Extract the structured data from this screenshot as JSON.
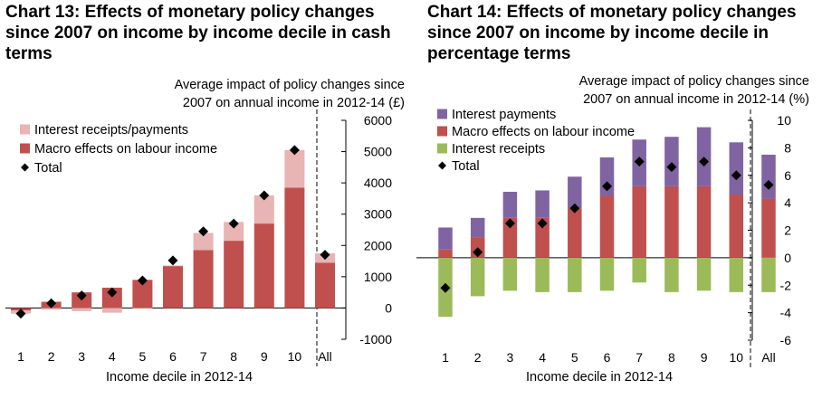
{
  "chart_data": [
    {
      "type": "bar",
      "stacked": true,
      "title": "Chart 13: Effects of monetary policy changes since 2007 on income by income decile in cash terms",
      "ylabel_line1": "Average impact of policy changes since",
      "ylabel_line2": "2007 on annual income in 2012-14 (£)",
      "xlabel": "Income decile in 2012-14",
      "categories": [
        "1",
        "2",
        "3",
        "4",
        "5",
        "6",
        "7",
        "8",
        "9",
        "10",
        "All"
      ],
      "ylim": [
        -1000,
        6000
      ],
      "yticks": [
        -1000,
        0,
        1000,
        2000,
        3000,
        4000,
        5000,
        6000
      ],
      "tick_labels": [
        "-1000",
        "0",
        "1000",
        "2000",
        "3000",
        "4000",
        "5000",
        "6000"
      ],
      "legend_position": "top-left",
      "series": [
        {
          "name": "Interest receipts/payments",
          "color": "#e8b4b4",
          "kind": "bar",
          "values": [
            -100,
            -50,
            -100,
            -150,
            -20,
            0,
            550,
            600,
            900,
            1200,
            300
          ]
        },
        {
          "name": "Macro effects on labour income",
          "color": "#c0504d",
          "kind": "bar",
          "values": [
            -80,
            200,
            500,
            650,
            900,
            1350,
            1850,
            2150,
            2700,
            3850,
            1450
          ]
        },
        {
          "name": "Total",
          "color": "#000000",
          "kind": "marker",
          "values": [
            -180,
            150,
            400,
            500,
            880,
            1520,
            2450,
            2700,
            3600,
            5050,
            1700
          ]
        }
      ]
    },
    {
      "type": "bar",
      "stacked": true,
      "title": "Chart 14: Effects of monetary policy changes since 2007 on income by income decile in percentage terms",
      "ylabel_line1": "Average impact of policy changes since",
      "ylabel_line2": "2007 on annual income in 2012-14 (%)",
      "xlabel": "Income decile in 2012-14",
      "categories": [
        "1",
        "2",
        "3",
        "4",
        "5",
        "6",
        "7",
        "8",
        "9",
        "10",
        "All"
      ],
      "ylim": [
        -6,
        10
      ],
      "yticks": [
        -6,
        -4,
        -2,
        0,
        2,
        4,
        6,
        8,
        10
      ],
      "tick_labels": [
        "-6",
        "-4",
        "-2",
        "0",
        "2",
        "4",
        "6",
        "8",
        "10"
      ],
      "legend_position": "top-left",
      "series": [
        {
          "name": "Interest payments",
          "color": "#8064a2",
          "kind": "bar",
          "values": [
            1.6,
            1.4,
            1.9,
            2.0,
            2.3,
            2.8,
            3.4,
            3.6,
            4.3,
            3.8,
            3.2
          ]
        },
        {
          "name": "Macro effects on labour income",
          "color": "#c0504d",
          "kind": "bar",
          "values": [
            0.6,
            1.5,
            2.9,
            2.9,
            3.6,
            4.5,
            5.2,
            5.2,
            5.2,
            4.6,
            4.3
          ]
        },
        {
          "name": "Interest receipts",
          "color": "#9bbb59",
          "kind": "bar",
          "values": [
            -4.3,
            -2.8,
            -2.4,
            -2.5,
            -2.5,
            -2.4,
            -1.8,
            -2.5,
            -2.4,
            -2.5,
            -2.5
          ]
        },
        {
          "name": "Total",
          "color": "#000000",
          "kind": "marker",
          "values": [
            -2.2,
            0.4,
            2.5,
            2.5,
            3.6,
            5.2,
            7.0,
            6.6,
            7.0,
            6.0,
            5.3
          ]
        }
      ]
    }
  ]
}
